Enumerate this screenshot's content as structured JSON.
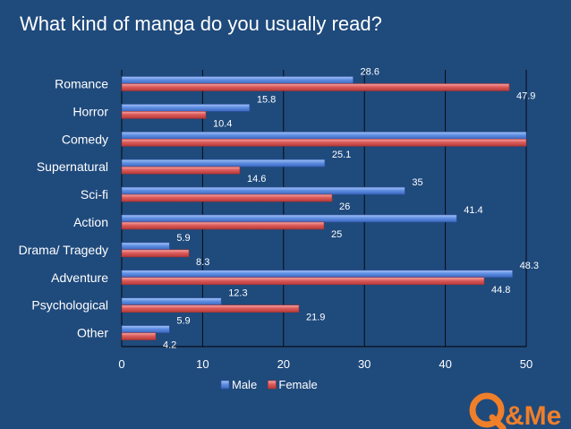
{
  "title": "What kind of manga do you usually read?",
  "chart_data": {
    "type": "bar",
    "orientation": "horizontal",
    "categories": [
      "Romance",
      "Horror",
      "Comedy",
      "Supernatural",
      "Sci-fi",
      "Action",
      "Drama/ Tragedy",
      "Adventure",
      "Psychological",
      "Other"
    ],
    "series": [
      {
        "name": "Male",
        "values": [
          28.6,
          15.8,
          50,
          25.1,
          35,
          41.4,
          5.9,
          48.3,
          12.3,
          5.9
        ],
        "color": "#4f7fd6"
      },
      {
        "name": "Female",
        "values": [
          47.9,
          10.4,
          50,
          14.6,
          26,
          25,
          8.3,
          44.8,
          21.9,
          4.2
        ],
        "color": "#d9504f"
      }
    ],
    "value_labels": {
      "Male": [
        "28.6",
        "15.8",
        "",
        "25.1",
        "35",
        "41.4",
        "5.9",
        "48.3",
        "12.3",
        "5.9"
      ],
      "Female": [
        "47.9",
        "10.4",
        "",
        "14.6",
        "26",
        "25",
        "8.3",
        "44.8",
        "21.9",
        "4.2"
      ]
    },
    "xlim": [
      0,
      50
    ],
    "xticks": [
      "0",
      "10",
      "20",
      "30",
      "40",
      "50"
    ],
    "grid": "vertical",
    "legend": "bottom",
    "xlabel": "",
    "ylabel": ""
  },
  "logo": {
    "text": "Q&Me",
    "color": "#f07f2a"
  }
}
